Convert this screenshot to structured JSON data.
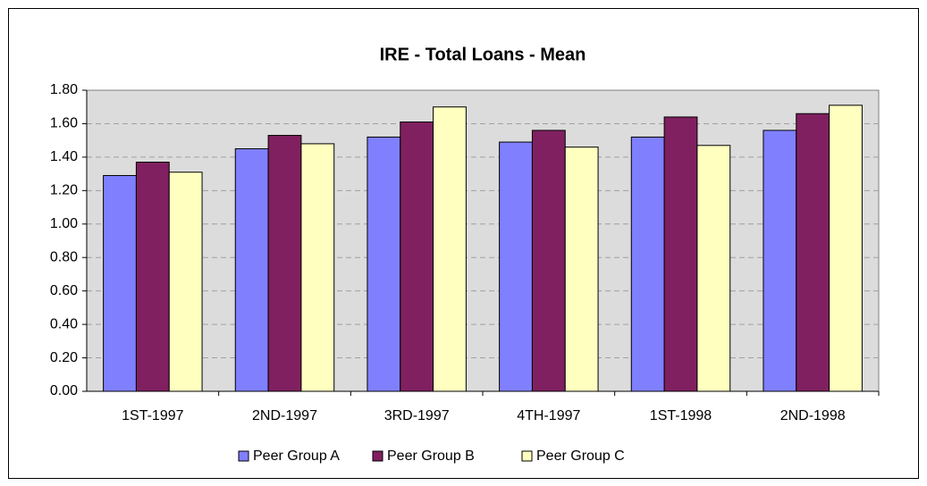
{
  "chart_data": {
    "type": "bar",
    "title": "IRE - Total Loans - Mean",
    "categories": [
      "1ST-1997",
      "2ND-1997",
      "3RD-1997",
      "4TH-1997",
      "1ST-1998",
      "2ND-1998"
    ],
    "series": [
      {
        "name": "Peer Group A",
        "color": "#8080ff",
        "values": [
          1.29,
          1.45,
          1.52,
          1.49,
          1.52,
          1.56
        ]
      },
      {
        "name": "Peer Group B",
        "color": "#802060",
        "values": [
          1.37,
          1.53,
          1.61,
          1.56,
          1.64,
          1.66
        ]
      },
      {
        "name": "Peer Group C",
        "color": "#ffffc0",
        "values": [
          1.31,
          1.48,
          1.7,
          1.46,
          1.47,
          1.71
        ]
      }
    ],
    "ylim": [
      0,
      1.8
    ],
    "yticks": [
      {
        "value": 0,
        "label": "0.00"
      },
      {
        "value": 0.2,
        "label": "0.20"
      },
      {
        "value": 0.4,
        "label": "0.40"
      },
      {
        "value": 0.6,
        "label": "0.60"
      },
      {
        "value": 0.8,
        "label": "0.80"
      },
      {
        "value": 1.0,
        "label": "1.00"
      },
      {
        "value": 1.2,
        "label": "1.20"
      },
      {
        "value": 1.4,
        "label": "1.40"
      },
      {
        "value": 1.6,
        "label": "1.60"
      },
      {
        "value": 1.8,
        "label": "1.80"
      }
    ],
    "grid": true,
    "legend": "bottom"
  }
}
